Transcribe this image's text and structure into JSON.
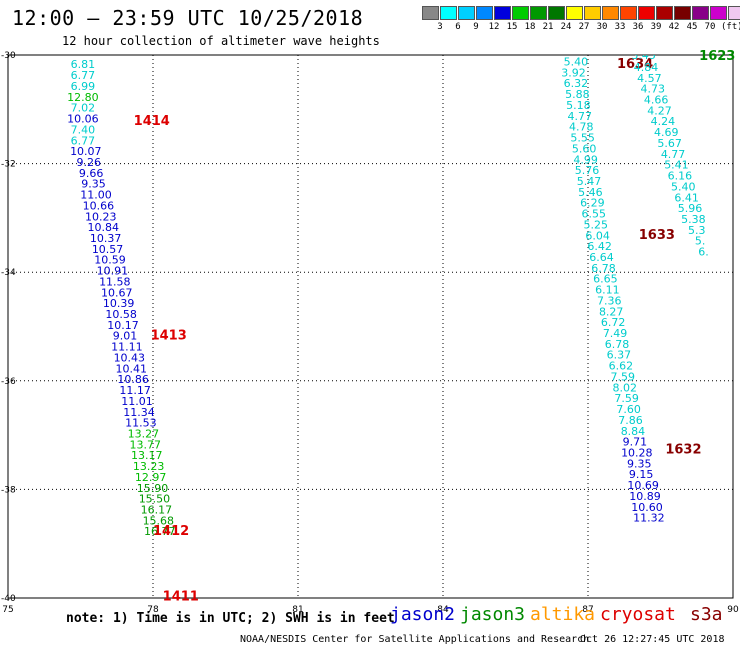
{
  "title": "12:00 – 23:59 UTC 10/25/2018",
  "subtitle": "12 hour collection of altimeter wave heights",
  "color_scale": {
    "colors": [
      "#888888",
      "#00ffff",
      "#00cfff",
      "#0088ff",
      "#0000dd",
      "#00cc00",
      "#009900",
      "#007700",
      "#ffff00",
      "#ffcc00",
      "#ff8800",
      "#ff4400",
      "#ee0000",
      "#aa0000",
      "#770000",
      "#880088",
      "#cc00cc",
      "#f0c8f0",
      "#000000"
    ],
    "labels": [
      "3",
      "6",
      "9",
      "12",
      "15",
      "18",
      "21",
      "24",
      "27",
      "30",
      "33",
      "36",
      "39",
      "42",
      "45",
      "70"
    ],
    "unit": "(ft)"
  },
  "note": "note: 1) Time is in UTC; 2) SWH is in feet",
  "satellites": [
    {
      "name": "jason2",
      "color": "#0000cc"
    },
    {
      "name": "jason3",
      "color": "#008800"
    },
    {
      "name": "altika",
      "color": "#ff9900"
    },
    {
      "name": "cryosat",
      "color": "#dd0000"
    },
    {
      "name": "s3a",
      "color": "#880000"
    }
  ],
  "credit": "NOAA/NESDIS Center for Satellite Applications and Research",
  "generated": "Oct 26 12:27:45 UTC 2018",
  "chart_data": {
    "type": "scatter",
    "xlim": [
      75,
      90
    ],
    "ylim": [
      -40,
      -30
    ],
    "x_ticks": [
      "75",
      "78",
      "81",
      "84",
      "87",
      "90"
    ],
    "y_ticks": [
      "-30",
      "-32",
      "-34",
      "-36",
      "-38",
      "-40"
    ],
    "grid": true,
    "swh_colors": {
      "6": "#00cccc",
      "9": "#0099ee",
      "12": "#0000cc",
      "15": "#00bb00",
      "18": "#009900"
    },
    "tracks": [
      {
        "pass_label": "",
        "label_color": "#dd0000",
        "points": [
          {
            "x": 76.55,
            "y": -30.17,
            "v": "6.81"
          },
          {
            "x": 76.55,
            "y": -30.37,
            "v": "6.77"
          },
          {
            "x": 76.55,
            "y": -30.57,
            "v": "6.99"
          },
          {
            "x": 76.55,
            "y": -30.77,
            "v": "12.80"
          },
          {
            "x": 76.55,
            "y": -30.97,
            "v": "7.02"
          },
          {
            "x": 76.55,
            "y": -31.17,
            "v": "10.06"
          },
          {
            "x": 76.55,
            "y": -31.37,
            "v": "7.40"
          },
          {
            "x": 76.55,
            "y": -31.57,
            "v": "6.77"
          },
          {
            "x": 76.61,
            "y": -31.77,
            "v": "10.07"
          },
          {
            "x": 76.67,
            "y": -31.97,
            "v": "9.26"
          },
          {
            "x": 76.72,
            "y": -32.17,
            "v": "9.66"
          },
          {
            "x": 76.77,
            "y": -32.37,
            "v": "9.35"
          },
          {
            "x": 76.82,
            "y": -32.57,
            "v": "11.00"
          },
          {
            "x": 76.87,
            "y": -32.77,
            "v": "10.66"
          },
          {
            "x": 76.92,
            "y": -32.97,
            "v": "10.23"
          },
          {
            "x": 76.97,
            "y": -33.17,
            "v": "10.84"
          },
          {
            "x": 77.02,
            "y": -33.37,
            "v": "10.37"
          },
          {
            "x": 77.06,
            "y": -33.57,
            "v": "10.57"
          },
          {
            "x": 77.11,
            "y": -33.77,
            "v": "10.59"
          },
          {
            "x": 77.16,
            "y": -33.97,
            "v": "10.91"
          },
          {
            "x": 77.21,
            "y": -34.17,
            "v": "11.58"
          },
          {
            "x": 77.25,
            "y": -34.37,
            "v": "10.67"
          },
          {
            "x": 77.29,
            "y": -34.57,
            "v": "10.39"
          },
          {
            "x": 77.34,
            "y": -34.77,
            "v": "10.58"
          },
          {
            "x": 77.38,
            "y": -34.97,
            "v": "10.17"
          },
          {
            "x": 77.42,
            "y": -35.17,
            "v": "9.01"
          },
          {
            "x": 77.46,
            "y": -35.37,
            "v": "11.11"
          },
          {
            "x": 77.51,
            "y": -35.57,
            "v": "10.43"
          },
          {
            "x": 77.55,
            "y": -35.77,
            "v": "10.41"
          },
          {
            "x": 77.59,
            "y": -35.97,
            "v": "10.86"
          },
          {
            "x": 77.63,
            "y": -36.17,
            "v": "11.17"
          },
          {
            "x": 77.67,
            "y": -36.37,
            "v": "11.01"
          },
          {
            "x": 77.71,
            "y": -36.57,
            "v": "11.34"
          },
          {
            "x": 77.75,
            "y": -36.77,
            "v": "11.53"
          },
          {
            "x": 77.8,
            "y": -36.97,
            "v": "13.27"
          },
          {
            "x": 77.84,
            "y": -37.17,
            "v": "13.77"
          },
          {
            "x": 77.87,
            "y": -37.37,
            "v": "13.17"
          },
          {
            "x": 77.91,
            "y": -37.57,
            "v": "13.23"
          },
          {
            "x": 77.95,
            "y": -37.77,
            "v": "12.97"
          },
          {
            "x": 77.99,
            "y": -37.97,
            "v": "15.90"
          },
          {
            "x": 78.03,
            "y": -38.17,
            "v": "15.50"
          },
          {
            "x": 78.07,
            "y": -38.37,
            "v": "16.17"
          },
          {
            "x": 78.11,
            "y": -38.57,
            "v": "15.68"
          },
          {
            "x": 78.14,
            "y": -38.77,
            "v": "16.77"
          }
        ],
        "pass_labels": [
          {
            "x": 77.6,
            "y": -31.2,
            "text": "1414"
          },
          {
            "x": 77.95,
            "y": -35.15,
            "text": "1413"
          },
          {
            "x": 78.0,
            "y": -38.75,
            "text": "1412"
          },
          {
            "x": 78.2,
            "y": -39.95,
            "text": "1411"
          }
        ]
      },
      {
        "label_color": "#880000",
        "points": [
          {
            "x": 86.75,
            "y": -30.12,
            "v": "5.40"
          },
          {
            "x": 86.7,
            "y": -30.32,
            "v": "3.92"
          },
          {
            "x": 86.75,
            "y": -30.52,
            "v": "6.32"
          },
          {
            "x": 86.78,
            "y": -30.72,
            "v": "5.88"
          },
          {
            "x": 86.8,
            "y": -30.92,
            "v": "5.18"
          },
          {
            "x": 86.83,
            "y": -31.12,
            "v": "4.77"
          },
          {
            "x": 86.86,
            "y": -31.32,
            "v": "4.78"
          },
          {
            "x": 86.89,
            "y": -31.52,
            "v": "5.55"
          },
          {
            "x": 86.92,
            "y": -31.72,
            "v": "5.60"
          },
          {
            "x": 86.95,
            "y": -31.92,
            "v": "4.99"
          },
          {
            "x": 86.98,
            "y": -32.12,
            "v": "5.76"
          },
          {
            "x": 87.02,
            "y": -32.32,
            "v": "5.47"
          },
          {
            "x": 87.05,
            "y": -32.52,
            "v": "5.46"
          },
          {
            "x": 87.09,
            "y": -32.72,
            "v": "6.29"
          },
          {
            "x": 87.12,
            "y": -32.92,
            "v": "6.55"
          },
          {
            "x": 87.16,
            "y": -33.12,
            "v": "5.25"
          },
          {
            "x": 87.2,
            "y": -33.32,
            "v": "6.04"
          },
          {
            "x": 87.24,
            "y": -33.52,
            "v": "6.42"
          },
          {
            "x": 87.28,
            "y": -33.72,
            "v": "6.64"
          },
          {
            "x": 87.32,
            "y": -33.92,
            "v": "6.78"
          },
          {
            "x": 87.36,
            "y": -34.12,
            "v": "6.65"
          },
          {
            "x": 87.4,
            "y": -34.32,
            "v": "6.11"
          },
          {
            "x": 87.44,
            "y": -34.52,
            "v": "7.36"
          },
          {
            "x": 87.48,
            "y": -34.72,
            "v": "8.27"
          },
          {
            "x": 87.52,
            "y": -34.92,
            "v": "6.72"
          },
          {
            "x": 87.56,
            "y": -35.12,
            "v": "7.49"
          },
          {
            "x": 87.6,
            "y": -35.32,
            "v": "6.78"
          },
          {
            "x": 87.64,
            "y": -35.52,
            "v": "6.37"
          },
          {
            "x": 87.68,
            "y": -35.72,
            "v": "6.62"
          },
          {
            "x": 87.72,
            "y": -35.92,
            "v": "7.59"
          },
          {
            "x": 87.76,
            "y": -36.12,
            "v": "8.02"
          },
          {
            "x": 87.8,
            "y": -36.32,
            "v": "7.59"
          },
          {
            "x": 87.84,
            "y": -36.52,
            "v": "7.60"
          },
          {
            "x": 87.88,
            "y": -36.72,
            "v": "7.86"
          },
          {
            "x": 87.93,
            "y": -36.92,
            "v": "8.84"
          },
          {
            "x": 87.97,
            "y": -37.12,
            "v": "9.71"
          },
          {
            "x": 88.01,
            "y": -37.32,
            "v": "10.28"
          },
          {
            "x": 88.06,
            "y": -37.52,
            "v": "9.35"
          },
          {
            "x": 88.1,
            "y": -37.72,
            "v": "9.15"
          },
          {
            "x": 88.14,
            "y": -37.92,
            "v": "10.69"
          },
          {
            "x": 88.18,
            "y": -38.12,
            "v": "10.89"
          },
          {
            "x": 88.22,
            "y": -38.32,
            "v": "10.60"
          },
          {
            "x": 88.26,
            "y": -38.52,
            "v": "11.32"
          }
        ],
        "pass_labels": [
          {
            "x": 87.6,
            "y": -30.15,
            "text": "1634"
          },
          {
            "x": 88.05,
            "y": -33.3,
            "text": "1633"
          },
          {
            "x": 88.6,
            "y": -37.25,
            "text": "1632"
          }
        ]
      },
      {
        "label_color": "#008800",
        "points": [
          {
            "x": 88.15,
            "y": -30.0,
            "v": "3.45"
          },
          {
            "x": 88.2,
            "y": -30.22,
            "v": "4.84"
          },
          {
            "x": 88.27,
            "y": -30.42,
            "v": "4.57"
          },
          {
            "x": 88.34,
            "y": -30.62,
            "v": "4.73"
          },
          {
            "x": 88.41,
            "y": -30.82,
            "v": "4.66"
          },
          {
            "x": 88.48,
            "y": -31.02,
            "v": "4.27"
          },
          {
            "x": 88.55,
            "y": -31.22,
            "v": "4.24"
          },
          {
            "x": 88.62,
            "y": -31.42,
            "v": "4.69"
          },
          {
            "x": 88.69,
            "y": -31.62,
            "v": "5.67"
          },
          {
            "x": 88.76,
            "y": -31.82,
            "v": "4.77"
          },
          {
            "x": 88.83,
            "y": -32.02,
            "v": "5.41"
          },
          {
            "x": 88.9,
            "y": -32.22,
            "v": "6.16"
          },
          {
            "x": 88.97,
            "y": -32.42,
            "v": "5.40"
          },
          {
            "x": 89.04,
            "y": -32.62,
            "v": "6.41"
          },
          {
            "x": 89.11,
            "y": -32.82,
            "v": "5.96"
          },
          {
            "x": 89.18,
            "y": -33.02,
            "v": "5.38"
          },
          {
            "x": 89.25,
            "y": -33.22,
            "v": "5.3"
          },
          {
            "x": 89.32,
            "y": -33.42,
            "v": "5."
          },
          {
            "x": 89.39,
            "y": -33.62,
            "v": "6."
          }
        ],
        "pass_labels": [
          {
            "x": 89.3,
            "y": -30.0,
            "text": "1623"
          }
        ]
      }
    ]
  }
}
